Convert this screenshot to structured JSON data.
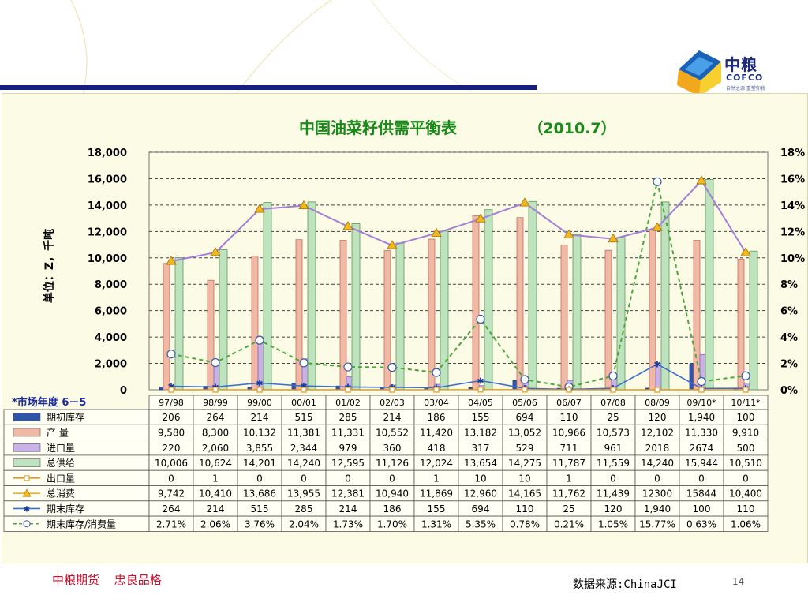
{
  "branding": {
    "logo_name": "中粮",
    "logo_en": "COFCO",
    "logo_tag": "自然之源 重塑你我"
  },
  "footer": {
    "company": "中粮期货",
    "slogan": "忠良品格",
    "source": "数据来源:ChinaJCI",
    "page_number": "14"
  },
  "colors": {
    "stock_begin": "#2f55a8",
    "production": "#f2b8a6",
    "imports": "#c8b2e6",
    "total_supply": "#bfe2bf",
    "exports": "#e39a1a",
    "consumption": "#a57ed6",
    "stock_end": "#3b6fcf",
    "ratio": "#4aa83a"
  },
  "chart_data": {
    "type": "bar",
    "title": "中国油菜籽供需平衡表",
    "subtitle": "（2010.7）",
    "ylabel": "单位：Z，千吨",
    "ylim": [
      0,
      18000
    ],
    "y_ticks": [
      "0",
      "2,000",
      "4,000",
      "6,000",
      "8,000",
      "10,000",
      "12,000",
      "14,000",
      "16,000",
      "18,000"
    ],
    "y2lim": [
      0,
      18
    ],
    "y2_ticks": [
      "0%",
      "2%",
      "4%",
      "6%",
      "8%",
      "10%",
      "12%",
      "14%",
      "16%",
      "18%"
    ],
    "grid": true,
    "category_header": "*市场年度 6－5",
    "categories": [
      "97/98",
      "98/99",
      "99/00",
      "00/01",
      "01/02",
      "02/03",
      "03/04",
      "04/05",
      "05/06",
      "06/07",
      "07/08",
      "08/09",
      "09/10*",
      "10/11*"
    ],
    "series": [
      {
        "name": "期初库存",
        "kind": "bar",
        "values": [
          206,
          264,
          214,
          515,
          285,
          214,
          186,
          155,
          694,
          110,
          25,
          120,
          1940,
          100
        ],
        "labels": [
          "206",
          "264",
          "214",
          "515",
          "285",
          "214",
          "186",
          "155",
          "694",
          "110",
          "25",
          "120",
          "1,940",
          "100"
        ]
      },
      {
        "name": "产 量",
        "kind": "bar",
        "values": [
          9580,
          8300,
          10132,
          11381,
          11331,
          10552,
          11420,
          13182,
          13052,
          10966,
          10573,
          12102,
          11330,
          9910
        ],
        "labels": [
          "9,580",
          "8,300",
          "10,132",
          "11,381",
          "11,331",
          "10,552",
          "11,420",
          "13,182",
          "13,052",
          "10,966",
          "10,573",
          "12,102",
          "11,330",
          "9,910"
        ]
      },
      {
        "name": "进口量",
        "kind": "bar",
        "values": [
          220,
          2060,
          3855,
          2344,
          979,
          360,
          418,
          317,
          529,
          711,
          961,
          2018,
          2674,
          500
        ],
        "labels": [
          "220",
          "2,060",
          "3,855",
          "2,344",
          "979",
          "360",
          "418",
          "317",
          "529",
          "711",
          "961",
          "2018",
          "2674",
          "500"
        ]
      },
      {
        "name": "总供给",
        "kind": "bar",
        "values": [
          10006,
          10624,
          14201,
          14240,
          12595,
          11126,
          12024,
          13654,
          14275,
          11787,
          11559,
          14240,
          15944,
          10510
        ],
        "labels": [
          "10,006",
          "10,624",
          "14,201",
          "14,240",
          "12,595",
          "11,126",
          "12,024",
          "13,654",
          "14,275",
          "11,787",
          "11,559",
          "14,240",
          "15,944",
          "10,510"
        ]
      },
      {
        "name": "出口量",
        "kind": "line",
        "values": [
          0,
          1,
          0,
          0,
          0,
          0,
          1,
          10,
          10,
          1,
          0,
          0,
          0,
          0
        ],
        "labels": [
          "0",
          "1",
          "0",
          "0",
          "0",
          "0",
          "1",
          "10",
          "10",
          "1",
          "0",
          "0",
          "0",
          "0"
        ]
      },
      {
        "name": "总消费",
        "kind": "line",
        "values": [
          9742,
          10410,
          13686,
          13955,
          12381,
          10940,
          11869,
          12960,
          14165,
          11762,
          11439,
          12300,
          15844,
          10400
        ],
        "labels": [
          "9,742",
          "10,410",
          "13,686",
          "13,955",
          "12,381",
          "10,940",
          "11,869",
          "12,960",
          "14,165",
          "11,762",
          "11,439",
          "12300",
          "15844",
          "10,400"
        ]
      },
      {
        "name": "期末库存",
        "kind": "line",
        "values": [
          264,
          214,
          515,
          285,
          214,
          186,
          155,
          694,
          110,
          25,
          120,
          1940,
          100,
          110
        ],
        "labels": [
          "264",
          "214",
          "515",
          "285",
          "214",
          "186",
          "155",
          "694",
          "110",
          "25",
          "120",
          "1,940",
          "100",
          "110"
        ]
      },
      {
        "name": "期末库存/消费量",
        "kind": "line",
        "axis": "right",
        "values": [
          2.71,
          2.06,
          3.76,
          2.04,
          1.73,
          1.7,
          1.31,
          5.35,
          0.78,
          0.21,
          1.05,
          15.77,
          0.63,
          1.06
        ],
        "labels": [
          "2.71%",
          "2.06%",
          "3.76%",
          "2.04%",
          "1.73%",
          "1.70%",
          "1.31%",
          "5.35%",
          "0.78%",
          "0.21%",
          "1.05%",
          "15.77%",
          "0.63%",
          "1.06%"
        ]
      }
    ]
  }
}
